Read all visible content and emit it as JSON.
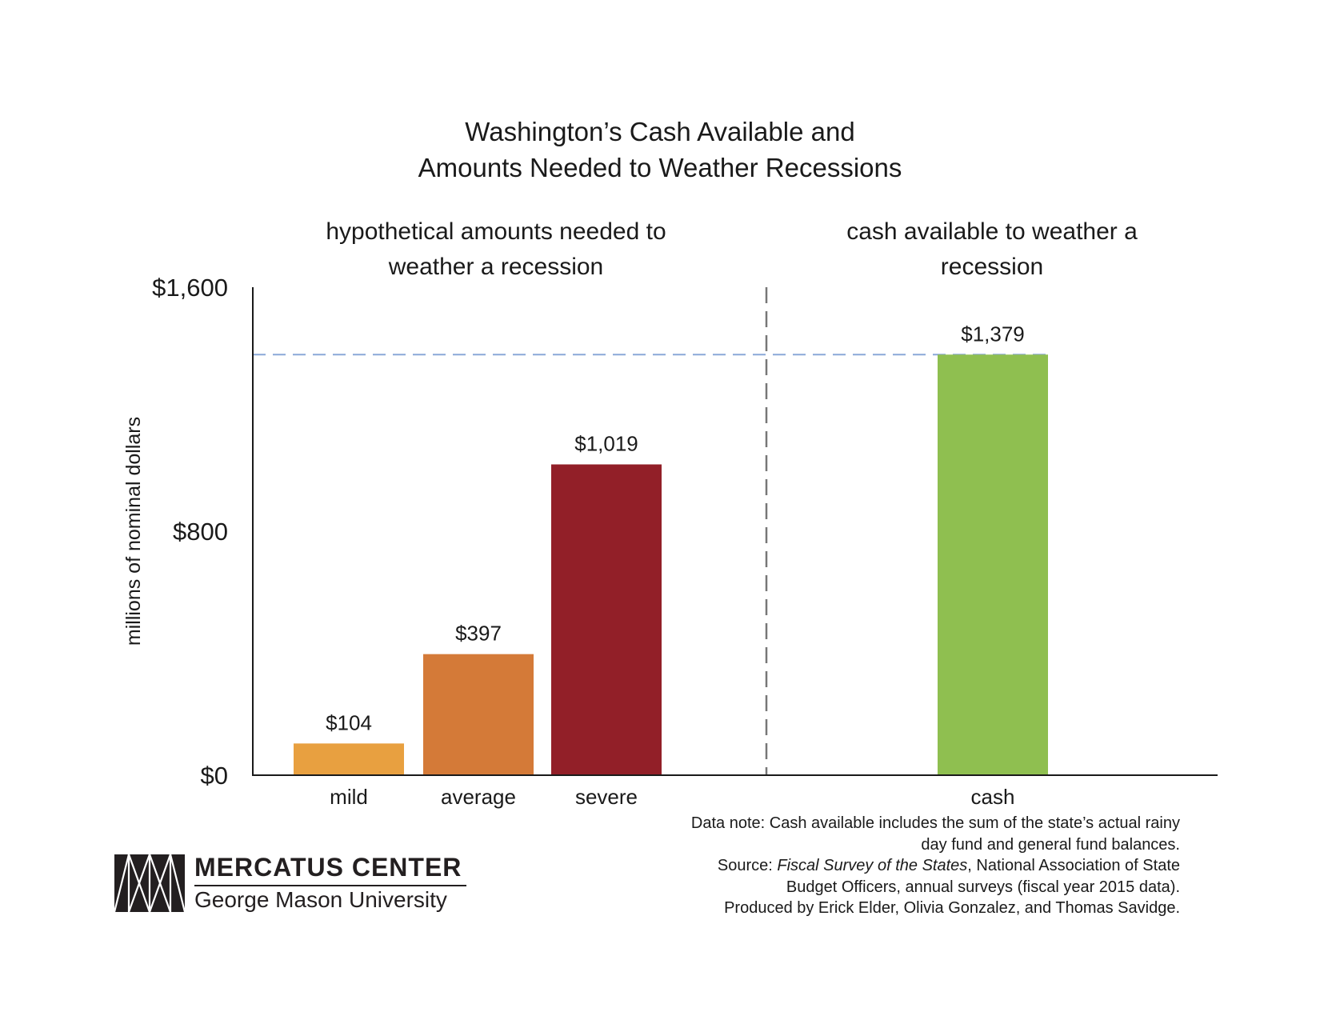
{
  "title_line1": "Washington’s Cash Available and",
  "title_line2": "Amounts Needed to Weather Recessions",
  "group_labels": {
    "left_line1": "hypothetical amounts needed to",
    "left_line2": "weather a recession",
    "right_line1": "cash available to weather a",
    "right_line2": "recession"
  },
  "chart_data": {
    "type": "bar",
    "ylabel": "millions of nominal dollars",
    "ylim": [
      0,
      1600
    ],
    "yticks": [
      0,
      800,
      1600
    ],
    "ytick_labels": [
      "$0",
      "$800",
      "$1,600"
    ],
    "grid": false,
    "categories": [
      "mild",
      "average",
      "severe",
      "cash"
    ],
    "values": [
      104,
      397,
      1019,
      1379
    ],
    "value_labels": [
      "$104",
      "$397",
      "$1,019",
      "$1,379"
    ],
    "colors": [
      "#E8A040",
      "#D47A38",
      "#921F28",
      "#8FBF50"
    ],
    "reference_line": {
      "value": 1379,
      "style": "dashed",
      "color": "#8AA8D8"
    },
    "separator": {
      "style": "dashed",
      "color": "#777777",
      "position": "between severe and cash"
    }
  },
  "notes": {
    "line1": "Data note: Cash available includes the sum of the state’s actual rainy",
    "line2": "day fund and general fund balances.",
    "source_prefix": "Source: ",
    "source_title": "Fiscal Survey of the States",
    "source_suffix": ", National Association of State",
    "line4": "Budget Officers, annual surveys (fiscal year 2015 data).",
    "line5": "Produced by Erick Elder, Olivia Gonzalez, and Thomas Savidge."
  },
  "logo": {
    "name": "MERCATUS CENTER",
    "subtitle": "George Mason University",
    "icon": "mercatus-logo-mark"
  }
}
